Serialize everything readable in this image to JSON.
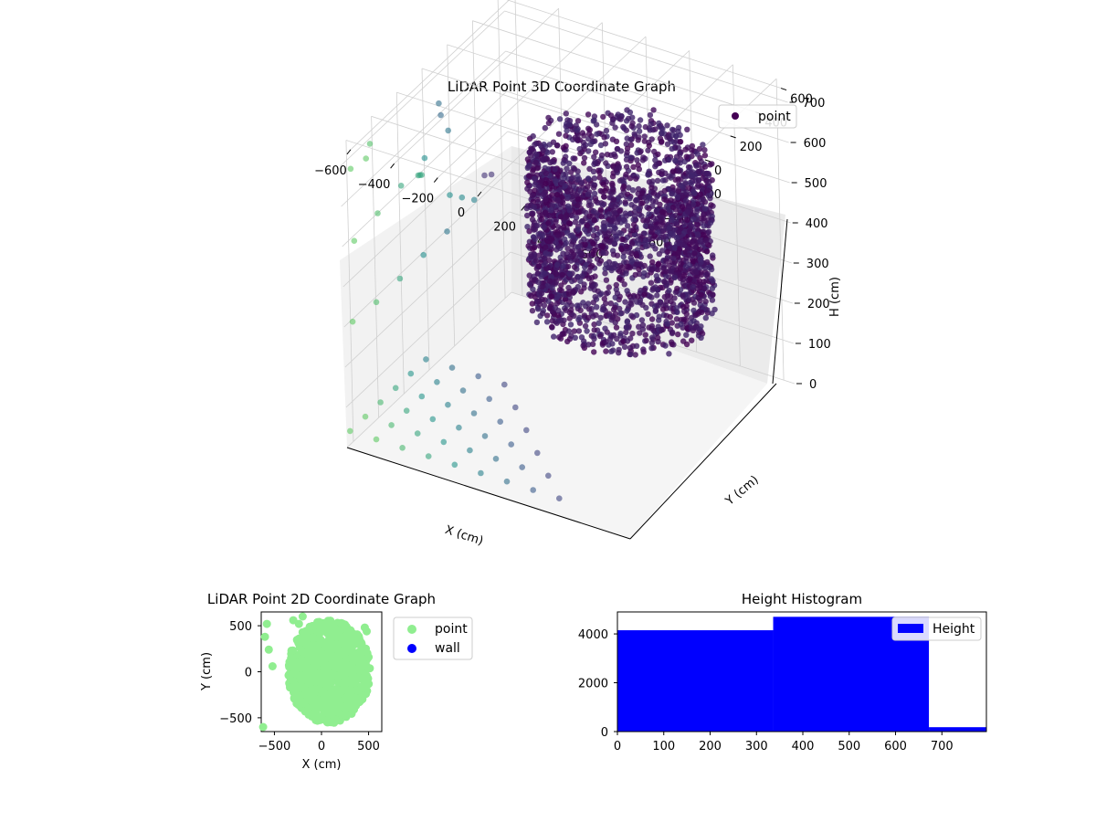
{
  "chart_data": [
    {
      "type": "scatter",
      "title": "LiDAR Point 3D Coordinate Graph",
      "xlabel": "X (cm)",
      "ylabel": "Y (cm)",
      "zlabel": "H (cm)",
      "x_ticks": [
        "−600",
        "−400",
        "−200",
        "0",
        "200",
        "400",
        "600"
      ],
      "y_ticks": [
        "−600",
        "−400",
        "−200",
        "0",
        "200",
        "400",
        "600"
      ],
      "z_ticks": [
        "0",
        "100",
        "200",
        "300",
        "400",
        "500",
        "600",
        "700"
      ],
      "xlim": [
        -650,
        650
      ],
      "ylim": [
        -650,
        650
      ],
      "zlim": [
        0,
        750
      ],
      "z_inverted": true,
      "grid": true,
      "legend": {
        "entries": [
          "point"
        ],
        "placement": "top-right"
      },
      "colormap": "viridis",
      "series": [
        {
          "name": "point",
          "color": "#440154",
          "description": "dense ring cloud plus sparse outlier columns",
          "dense_ring": {
            "center": [
              100,
              250
            ],
            "radius": 380,
            "h_range": [
              200,
              600
            ],
            "count": 2500
          },
          "sparse_points": [
            [
              -640,
              -640,
              40
            ],
            [
              -640,
              -520,
              40
            ],
            [
              -640,
              -400,
              40
            ],
            [
              -640,
              -280,
              40
            ],
            [
              -640,
              -160,
              40
            ],
            [
              -640,
              -40,
              40
            ],
            [
              -520,
              -640,
              40
            ],
            [
              -520,
              -520,
              40
            ],
            [
              -520,
              -400,
              40
            ],
            [
              -520,
              -280,
              40
            ],
            [
              -520,
              -160,
              40
            ],
            [
              -520,
              -40,
              40
            ],
            [
              -400,
              -640,
              40
            ],
            [
              -400,
              -520,
              40
            ],
            [
              -400,
              -400,
              40
            ],
            [
              -400,
              -280,
              40
            ],
            [
              -400,
              -160,
              40
            ],
            [
              -400,
              -40,
              40
            ],
            [
              -280,
              -640,
              40
            ],
            [
              -280,
              -520,
              40
            ],
            [
              -280,
              -400,
              40
            ],
            [
              -280,
              -280,
              40
            ],
            [
              -280,
              -160,
              40
            ],
            [
              -280,
              -40,
              40
            ],
            [
              -160,
              -640,
              40
            ],
            [
              -160,
              -520,
              40
            ],
            [
              -160,
              -400,
              40
            ],
            [
              -160,
              -280,
              40
            ],
            [
              -160,
              -160,
              40
            ],
            [
              -40,
              -640,
              40
            ],
            [
              -40,
              -520,
              40
            ],
            [
              -40,
              -400,
              40
            ],
            [
              -40,
              -280,
              40
            ],
            [
              80,
              -640,
              40
            ],
            [
              80,
              -520,
              40
            ],
            [
              80,
              -400,
              40
            ],
            [
              200,
              -640,
              40
            ],
            [
              200,
              -520,
              40
            ],
            [
              320,
              -640,
              40
            ],
            [
              -640,
              -600,
              300
            ],
            [
              -600,
              -480,
              320
            ],
            [
              -560,
              -360,
              350
            ],
            [
              -520,
              -240,
              380
            ],
            [
              -480,
              -120,
              410
            ],
            [
              -600,
              -640,
              520
            ],
            [
              -560,
              -520,
              560
            ],
            [
              -520,
              -400,
              600
            ],
            [
              -480,
              -280,
              640
            ],
            [
              -440,
              -160,
              680
            ],
            [
              -620,
              -620,
              690
            ],
            [
              -560,
              -600,
              720
            ],
            [
              -600,
              -500,
              720
            ],
            [
              -200,
              -560,
              680
            ],
            [
              -120,
              -600,
              700
            ],
            [
              -40,
              -640,
              720
            ],
            [
              -360,
              -520,
              690
            ],
            [
              -320,
              -600,
              720
            ],
            [
              -280,
              -640,
              740
            ],
            [
              -600,
              380,
              380
            ],
            [
              -520,
              300,
              420
            ],
            [
              -640,
              120,
              600
            ],
            [
              -600,
              40,
              660
            ]
          ]
        }
      ]
    },
    {
      "type": "scatter",
      "title": "LiDAR Point 2D Coordinate Graph",
      "xlabel": "X (cm)",
      "ylabel": "Y (cm)",
      "x_ticks": [
        "−500",
        "0",
        "500"
      ],
      "y_ticks": [
        "−500",
        "0",
        "500"
      ],
      "xlim": [
        -640,
        640
      ],
      "ylim": [
        -650,
        650
      ],
      "legend": {
        "entries": [
          "point",
          "wall"
        ],
        "placement": "outside-right"
      },
      "series": [
        {
          "name": "point",
          "color": "#90ee90",
          "cloud": {
            "center": [
              80,
              0
            ],
            "radius_x": 440,
            "radius_y": 560,
            "count": 900
          },
          "outliers": [
            [
              -580,
              520
            ],
            [
              -600,
              380
            ],
            [
              -560,
              240
            ],
            [
              -520,
              60
            ],
            [
              -620,
              -600
            ],
            [
              -300,
              560
            ],
            [
              -200,
              600
            ],
            [
              -240,
              520
            ],
            [
              460,
              480
            ],
            [
              480,
              440
            ]
          ]
        },
        {
          "name": "wall",
          "color": "#0000ff",
          "points": []
        }
      ]
    },
    {
      "type": "bar",
      "title": "Height Histogram",
      "xlabel": "",
      "ylabel": "",
      "x_ticks": [
        "0",
        "100",
        "200",
        "300",
        "400",
        "500",
        "600",
        "700"
      ],
      "y_ticks": [
        "0",
        "2000",
        "4000"
      ],
      "xlim": [
        0,
        796
      ],
      "ylim": [
        0,
        4900
      ],
      "legend": {
        "entries": [
          "Height"
        ],
        "placement": "top-right"
      },
      "series": [
        {
          "name": "Height",
          "color": "#0000ff",
          "bins": [
            [
              0,
              336,
              4150
            ],
            [
              336,
              672,
              4700
            ],
            [
              672,
              796,
              180
            ]
          ]
        }
      ]
    }
  ]
}
